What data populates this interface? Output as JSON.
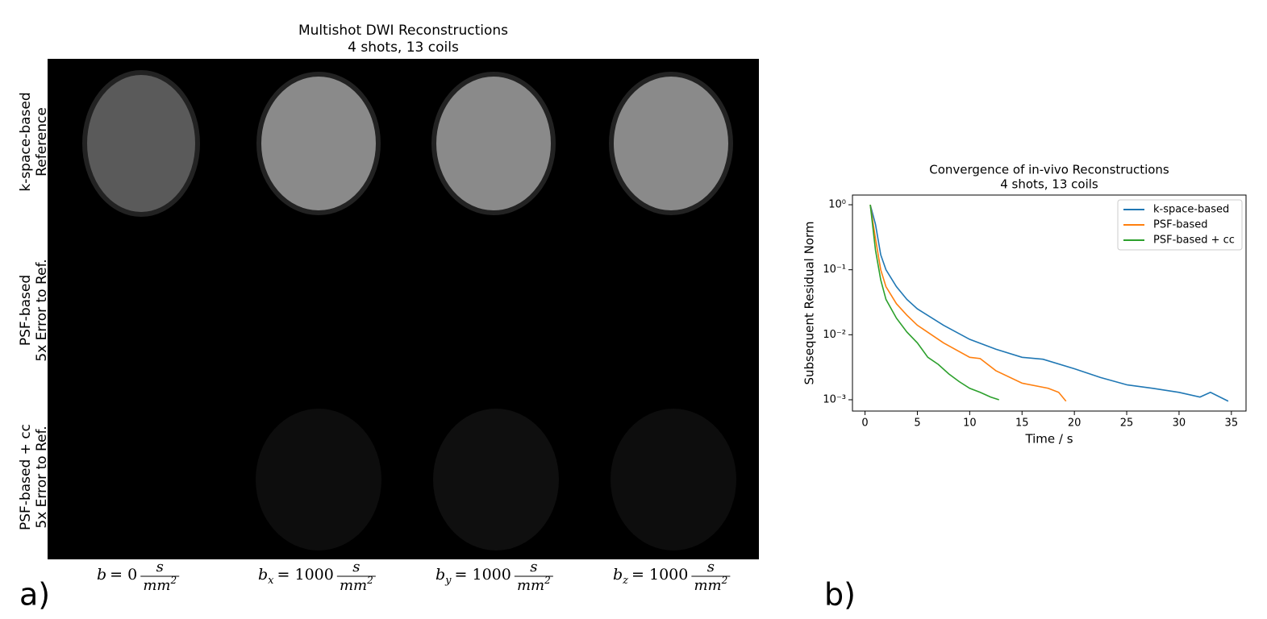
{
  "figure": {
    "title": "Multishot DWI Reconstructions",
    "subtitle": "4 shots, 13 coils",
    "rows": [
      [
        "k-space-based",
        "Reference"
      ],
      [
        "PSF-based",
        "5x Error to Ref."
      ],
      [
        "PSF-based + cc",
        "5x Error to Ref."
      ]
    ],
    "columns": [
      {
        "symbol": "b",
        "rhs": "= 0",
        "num": "s",
        "den": "mm",
        "sup": "2"
      },
      {
        "symbol": "b",
        "sub": "x",
        "rhs": "= 1000",
        "num": "s",
        "den": "mm",
        "sup": "2"
      },
      {
        "symbol": "b",
        "sub": "y",
        "rhs": "= 1000",
        "num": "s",
        "den": "mm",
        "sup": "2"
      },
      {
        "symbol": "b",
        "sub": "z",
        "rhs": "= 1000",
        "num": "s",
        "den": "mm",
        "sup": "2"
      }
    ],
    "panel_labels": [
      "a)",
      "b)"
    ]
  },
  "chart_data": {
    "type": "line",
    "title": "Convergence of in-vivo Reconstructions",
    "subtitle": "4 shots, 13 coils",
    "x_label": "Time / s",
    "y_label": "Subsequent Residual Norm",
    "log_y": true,
    "legend": "upper right",
    "xlim": [
      -1.2,
      36.4
    ],
    "xticks": [
      0,
      5,
      10,
      15,
      20,
      25,
      30,
      35
    ],
    "ylim": [
      0.00067,
      1.41
    ],
    "yticks": [
      {
        "value": 1,
        "label": "10⁰"
      },
      {
        "value": 0.1,
        "label": "10⁻¹"
      },
      {
        "value": 0.01,
        "label": "10⁻²"
      },
      {
        "value": 0.001,
        "label": "10⁻³"
      }
    ],
    "series": [
      {
        "name": "k-space-based",
        "color": "#1f77b4",
        "x": [
          0.5,
          1,
          1.5,
          2,
          3,
          4,
          5,
          7.5,
          10,
          12.5,
          15,
          17,
          20,
          22.5,
          25,
          27.5,
          30,
          32,
          33,
          34.7
        ],
        "values": [
          1,
          0.5,
          0.17,
          0.1,
          0.055,
          0.035,
          0.025,
          0.014,
          0.0085,
          0.006,
          0.0045,
          0.0042,
          0.003,
          0.0022,
          0.0017,
          0.0015,
          0.0013,
          0.0011,
          0.0013,
          0.00095
        ]
      },
      {
        "name": "PSF-based",
        "color": "#ff7f0e",
        "x": [
          0.5,
          1,
          1.5,
          2,
          3,
          4,
          5,
          7.5,
          10,
          11,
          12.5,
          15,
          17.5,
          18.5,
          19.2
        ],
        "values": [
          1,
          0.3,
          0.1,
          0.055,
          0.03,
          0.02,
          0.014,
          0.0075,
          0.0045,
          0.0043,
          0.0028,
          0.0018,
          0.0015,
          0.0013,
          0.00095
        ]
      },
      {
        "name": "PSF-based + cc",
        "color": "#2ca02c",
        "x": [
          0.5,
          1,
          1.5,
          2,
          3,
          4,
          5,
          6,
          7,
          8,
          9,
          10,
          11,
          12,
          12.8
        ],
        "values": [
          1,
          0.2,
          0.07,
          0.035,
          0.018,
          0.011,
          0.0075,
          0.0045,
          0.0035,
          0.0025,
          0.0019,
          0.0015,
          0.0013,
          0.0011,
          0.001
        ]
      }
    ]
  }
}
